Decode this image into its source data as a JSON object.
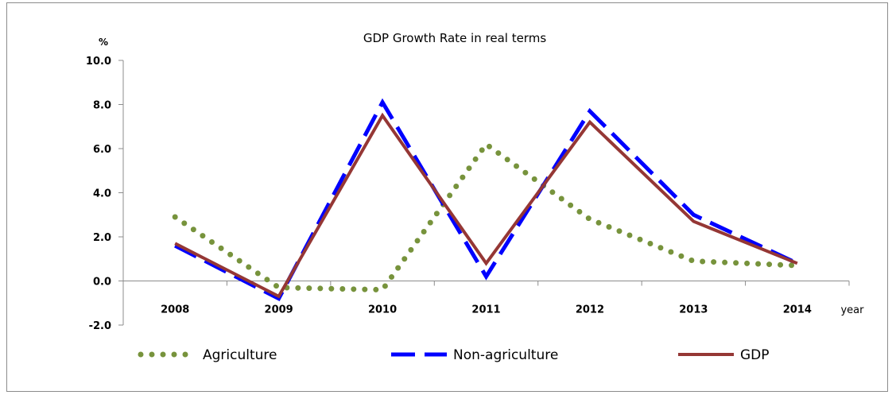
{
  "chart_data": {
    "type": "line",
    "title": "GDP Growth Rate in real terms",
    "ylabel": "%",
    "xlabel": "year",
    "categories": [
      "2008",
      "2009",
      "2010",
      "2011",
      "2012",
      "2013",
      "2014"
    ],
    "ylim": [
      -2.0,
      10.0
    ],
    "yticks": [
      "10.0",
      "8.0",
      "6.0",
      "4.0",
      "2.0",
      "0.0",
      "-2.0"
    ],
    "grid": false,
    "legend_position": "bottom",
    "series": [
      {
        "name": "Agriculture",
        "values": [
          2.9,
          -0.3,
          -0.4,
          6.2,
          2.8,
          0.9,
          0.7
        ],
        "color": "#77933c",
        "style": "dotted"
      },
      {
        "name": "Non-agriculture",
        "values": [
          1.6,
          -0.8,
          8.1,
          0.2,
          7.7,
          3.0,
          0.8
        ],
        "color": "#0000ff",
        "style": "dashed"
      },
      {
        "name": "GDP",
        "values": [
          1.7,
          -0.7,
          7.5,
          0.8,
          7.2,
          2.7,
          0.8
        ],
        "color": "#953735",
        "style": "solid"
      }
    ]
  }
}
